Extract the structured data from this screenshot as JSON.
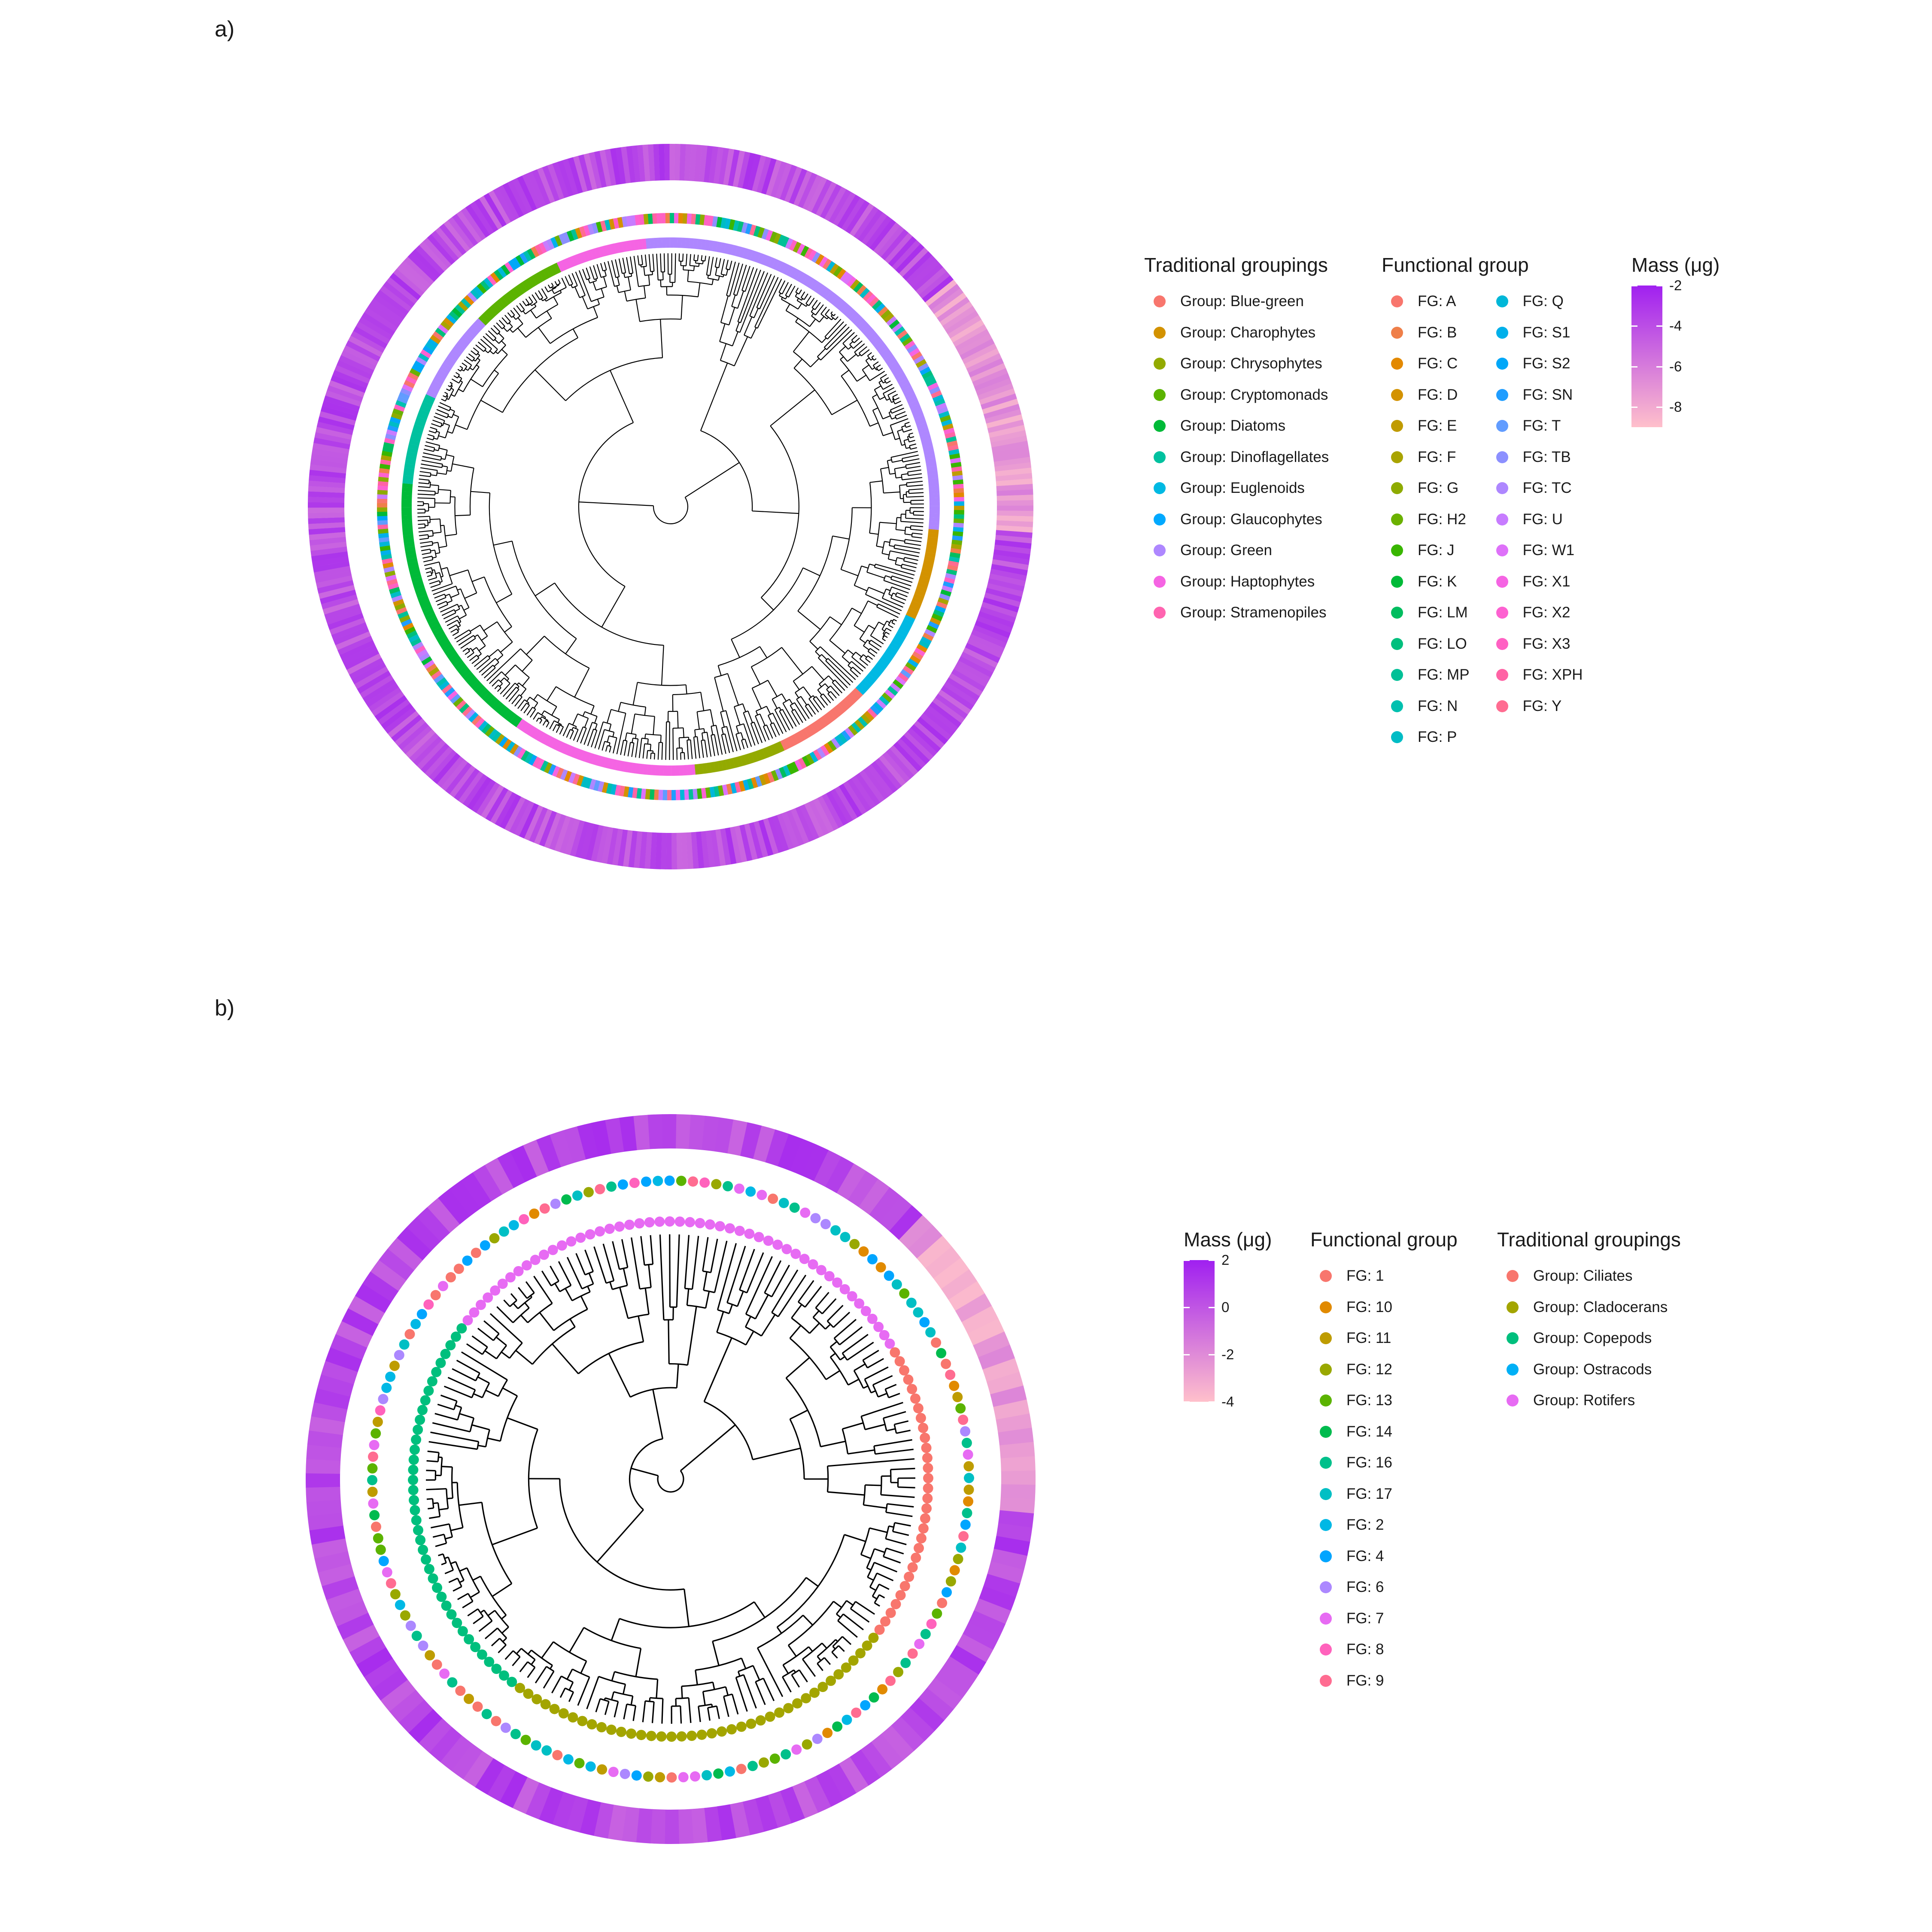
{
  "panels": {
    "a": {
      "label": "a)",
      "traditional_legend": {
        "title": "Traditional groupings",
        "items": [
          {
            "label": "Group: Blue-green",
            "color": "#F8766D"
          },
          {
            "label": "Group: Charophytes",
            "color": "#D39200"
          },
          {
            "label": "Group: Chrysophytes",
            "color": "#93AA00"
          },
          {
            "label": "Group: Cryptomonads",
            "color": "#5BB300"
          },
          {
            "label": "Group: Diatoms",
            "color": "#00BA38"
          },
          {
            "label": "Group: Dinoflagellates",
            "color": "#00C19F"
          },
          {
            "label": "Group: Euglenoids",
            "color": "#00B9E3"
          },
          {
            "label": "Group: Glaucophytes",
            "color": "#00A9FF"
          },
          {
            "label": "Group: Green",
            "color": "#AE87FF"
          },
          {
            "label": "Group: Haptophytes",
            "color": "#F564E3"
          },
          {
            "label": "Group: Stramenopiles",
            "color": "#FF64B0"
          }
        ]
      },
      "functional_legend": {
        "title": "Functional group",
        "col1": [
          {
            "label": "FG: A",
            "color": "#F8766D"
          },
          {
            "label": "FG: B",
            "color": "#EF7F49"
          },
          {
            "label": "FG: C",
            "color": "#E38900"
          },
          {
            "label": "FG: D",
            "color": "#D39200"
          },
          {
            "label": "FG: E",
            "color": "#C09B00"
          },
          {
            "label": "FG: F",
            "color": "#A9A400"
          },
          {
            "label": "FG: G",
            "color": "#8EAB00"
          },
          {
            "label": "FG: H2",
            "color": "#6BB100"
          },
          {
            "label": "FG: J",
            "color": "#39B600"
          },
          {
            "label": "FG: K",
            "color": "#00BA38"
          },
          {
            "label": "FG: LM",
            "color": "#00BD5F"
          },
          {
            "label": "FG: LO",
            "color": "#00BF7D"
          },
          {
            "label": "FG: MP",
            "color": "#00C097"
          },
          {
            "label": "FG: N",
            "color": "#00C0AF"
          },
          {
            "label": "FG: P",
            "color": "#00BCC5"
          }
        ],
        "col2": [
          {
            "label": "FG: Q",
            "color": "#00B7D8"
          },
          {
            "label": "FG: S1",
            "color": "#00B0EA"
          },
          {
            "label": "FG: S2",
            "color": "#00A7F8"
          },
          {
            "label": "FG: SN",
            "color": "#1F9DFF"
          },
          {
            "label": "FG: T",
            "color": "#619CFF"
          },
          {
            "label": "FG: TB",
            "color": "#8C90FF"
          },
          {
            "label": "FG: TC",
            "color": "#AE87FF"
          },
          {
            "label": "FG: U",
            "color": "#C77CFF"
          },
          {
            "label": "FG: W1",
            "color": "#DE71F9"
          },
          {
            "label": "FG: X1",
            "color": "#F564E3"
          },
          {
            "label": "FG: X2",
            "color": "#FD61D1"
          },
          {
            "label": "FG: X3",
            "color": "#FF61C3"
          },
          {
            "label": "FG: XPH",
            "color": "#FF63A5"
          },
          {
            "label": "FG: Y",
            "color": "#FF6C91"
          }
        ]
      },
      "mass_legend": {
        "title": "Mass (μg)",
        "ticks": [
          "-2",
          "-4",
          "-6",
          "-8"
        ],
        "range": [
          -9,
          -2
        ],
        "tick_values": [
          -2,
          -4,
          -6,
          -8
        ],
        "colors": [
          "#FFC0CB",
          "#A020F0"
        ]
      },
      "tree": {
        "tips": 420,
        "seed": 11
      }
    },
    "b": {
      "label": "b)",
      "mass_legend": {
        "title": "Mass (μg)",
        "ticks": [
          "2",
          "0",
          "-2",
          "-4"
        ],
        "range": [
          -4,
          2
        ],
        "tick_values": [
          2,
          0,
          -2,
          -4
        ],
        "colors": [
          "#FFC0CB",
          "#A020F0"
        ]
      },
      "functional_legend": {
        "title": "Functional group",
        "items": [
          {
            "label": "FG: 1",
            "color": "#F8766D"
          },
          {
            "label": "FG: 10",
            "color": "#E18A00"
          },
          {
            "label": "FG: 11",
            "color": "#BE9C00"
          },
          {
            "label": "FG: 12",
            "color": "#99A800"
          },
          {
            "label": "FG: 13",
            "color": "#5BB300"
          },
          {
            "label": "FG: 14",
            "color": "#00BB4E"
          },
          {
            "label": "FG: 16",
            "color": "#00C08B"
          },
          {
            "label": "FG: 17",
            "color": "#00BFC4"
          },
          {
            "label": "FG: 2",
            "color": "#00B8E5"
          },
          {
            "label": "FG: 4",
            "color": "#00A5FF"
          },
          {
            "label": "FG: 6",
            "color": "#AC88FF"
          },
          {
            "label": "FG: 7",
            "color": "#E76BF3"
          },
          {
            "label": "FG: 8",
            "color": "#FF62BC"
          },
          {
            "label": "FG: 9",
            "color": "#FF6C91"
          }
        ]
      },
      "traditional_legend": {
        "title": "Traditional groupings",
        "items": [
          {
            "label": "Group: Ciliates",
            "color": "#F8766D"
          },
          {
            "label": "Group: Cladocerans",
            "color": "#A3A500"
          },
          {
            "label": "Group: Copepods",
            "color": "#00BF7D"
          },
          {
            "label": "Group: Ostracods",
            "color": "#00B0F6"
          },
          {
            "label": "Group: Rotifers",
            "color": "#E76BF3"
          }
        ]
      },
      "tree": {
        "tips": 160,
        "seed": 5
      }
    }
  }
}
